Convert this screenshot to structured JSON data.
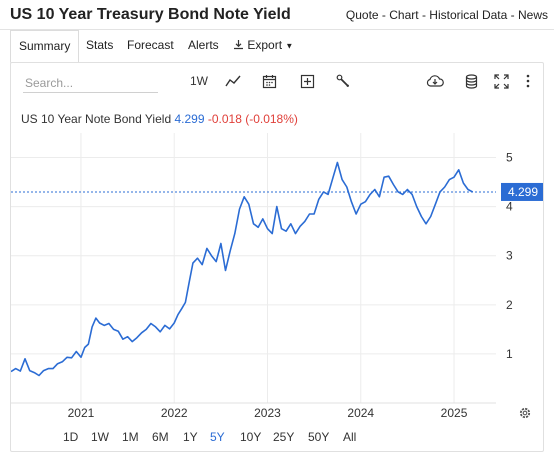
{
  "header": {
    "title": "US 10 Year Treasury Bond Note Yield",
    "links": [
      "Quote",
      "Chart",
      "Historical Data",
      "News"
    ],
    "separator": " - "
  },
  "tabs": [
    {
      "label": "Summary",
      "active": true
    },
    {
      "label": "Stats"
    },
    {
      "label": "Forecast"
    },
    {
      "label": "Alerts"
    },
    {
      "label": "Export"
    }
  ],
  "toolbar": {
    "search_placeholder": "Search...",
    "interval_label": "1W",
    "icons": [
      "line-chart-icon",
      "calendar-icon",
      "add-icon",
      "wrench-icon",
      "cloud-download-icon",
      "database-icon",
      "fullscreen-icon",
      "more-vertical-icon"
    ]
  },
  "legend": {
    "name": "US 10 Year Note Bond Yield",
    "value": "4.299",
    "change": "-0.018 (-0.018%)"
  },
  "colors": {
    "line": "#2b6cd4",
    "negative": "#e0403a",
    "grid": "#ececec",
    "badge": "#2b6cd4"
  },
  "ranges": [
    {
      "label": "1D"
    },
    {
      "label": "1W"
    },
    {
      "label": "1M"
    },
    {
      "label": "6M"
    },
    {
      "label": "1Y"
    },
    {
      "label": "5Y",
      "active": true
    },
    {
      "label": "10Y"
    },
    {
      "label": "25Y"
    },
    {
      "label": "50Y"
    },
    {
      "label": "All"
    }
  ],
  "chart_data": {
    "type": "line",
    "series": [
      {
        "x": [
          2020.25,
          2020.3,
          2020.35,
          2020.4,
          2020.45,
          2020.5,
          2020.55,
          2020.6,
          2020.65,
          2020.7,
          2020.75,
          2020.8,
          2020.85,
          2020.9,
          2020.95,
          2021.0,
          2021.04,
          2021.08,
          2021.12,
          2021.16,
          2021.2,
          2021.25,
          2021.3,
          2021.35,
          2021.4,
          2021.45,
          2021.5,
          2021.55,
          2021.6,
          2021.65,
          2021.7,
          2021.75,
          2021.8,
          2021.85,
          2021.9,
          2021.95,
          2022.0,
          2022.04,
          2022.08,
          2022.12,
          2022.16,
          2022.2,
          2022.25,
          2022.3,
          2022.35,
          2022.4,
          2022.45,
          2022.5,
          2022.55,
          2022.6,
          2022.65,
          2022.7,
          2022.75,
          2022.8,
          2022.85,
          2022.9,
          2022.95,
          2023.0,
          2023.05,
          2023.1,
          2023.15,
          2023.2,
          2023.25,
          2023.3,
          2023.35,
          2023.4,
          2023.45,
          2023.5,
          2023.55,
          2023.6,
          2023.65,
          2023.7,
          2023.75,
          2023.8,
          2023.85,
          2023.9,
          2023.95,
          2024.0,
          2024.05,
          2024.1,
          2024.15,
          2024.2,
          2024.25,
          2024.3,
          2024.35,
          2024.4,
          2024.45,
          2024.5,
          2024.55,
          2024.6,
          2024.65,
          2024.7,
          2024.75,
          2024.8,
          2024.85,
          2024.9,
          2024.95,
          2025.0,
          2025.05,
          2025.1,
          2025.15,
          2025.2
        ],
        "y": [
          0.64,
          0.7,
          0.65,
          0.9,
          0.66,
          0.62,
          0.56,
          0.66,
          0.7,
          0.7,
          0.8,
          0.84,
          0.93,
          0.92,
          1.05,
          0.93,
          1.13,
          1.2,
          1.55,
          1.73,
          1.63,
          1.58,
          1.62,
          1.5,
          1.46,
          1.3,
          1.35,
          1.25,
          1.33,
          1.43,
          1.5,
          1.62,
          1.55,
          1.45,
          1.58,
          1.51,
          1.63,
          1.8,
          1.92,
          2.05,
          2.45,
          2.85,
          2.95,
          2.82,
          3.15,
          3.0,
          2.88,
          3.25,
          2.7,
          3.1,
          3.45,
          3.95,
          4.2,
          4.05,
          3.65,
          3.58,
          3.75,
          3.55,
          3.45,
          4.0,
          3.55,
          3.5,
          3.65,
          3.45,
          3.6,
          3.7,
          3.85,
          3.85,
          4.15,
          4.3,
          4.25,
          4.58,
          4.9,
          4.55,
          4.4,
          4.1,
          3.85,
          4.05,
          4.1,
          4.25,
          4.35,
          4.2,
          4.6,
          4.62,
          4.45,
          4.3,
          4.25,
          4.35,
          4.25,
          4.0,
          3.8,
          3.65,
          3.8,
          4.05,
          4.3,
          4.4,
          4.55,
          4.6,
          4.75,
          4.48,
          4.35,
          4.3
        ]
      }
    ],
    "ylabel": "",
    "xlabel": "",
    "ylim": [
      0,
      5.5
    ],
    "xlim": [
      2020.25,
      2025.45
    ],
    "y_ticks": [
      1,
      2,
      3,
      4,
      5
    ],
    "x_ticks": [
      2021,
      2022,
      2023,
      2024,
      2025
    ],
    "reference_value": 4.299,
    "reference_label": "4.299",
    "grid": true,
    "y_axis_position": "right"
  }
}
